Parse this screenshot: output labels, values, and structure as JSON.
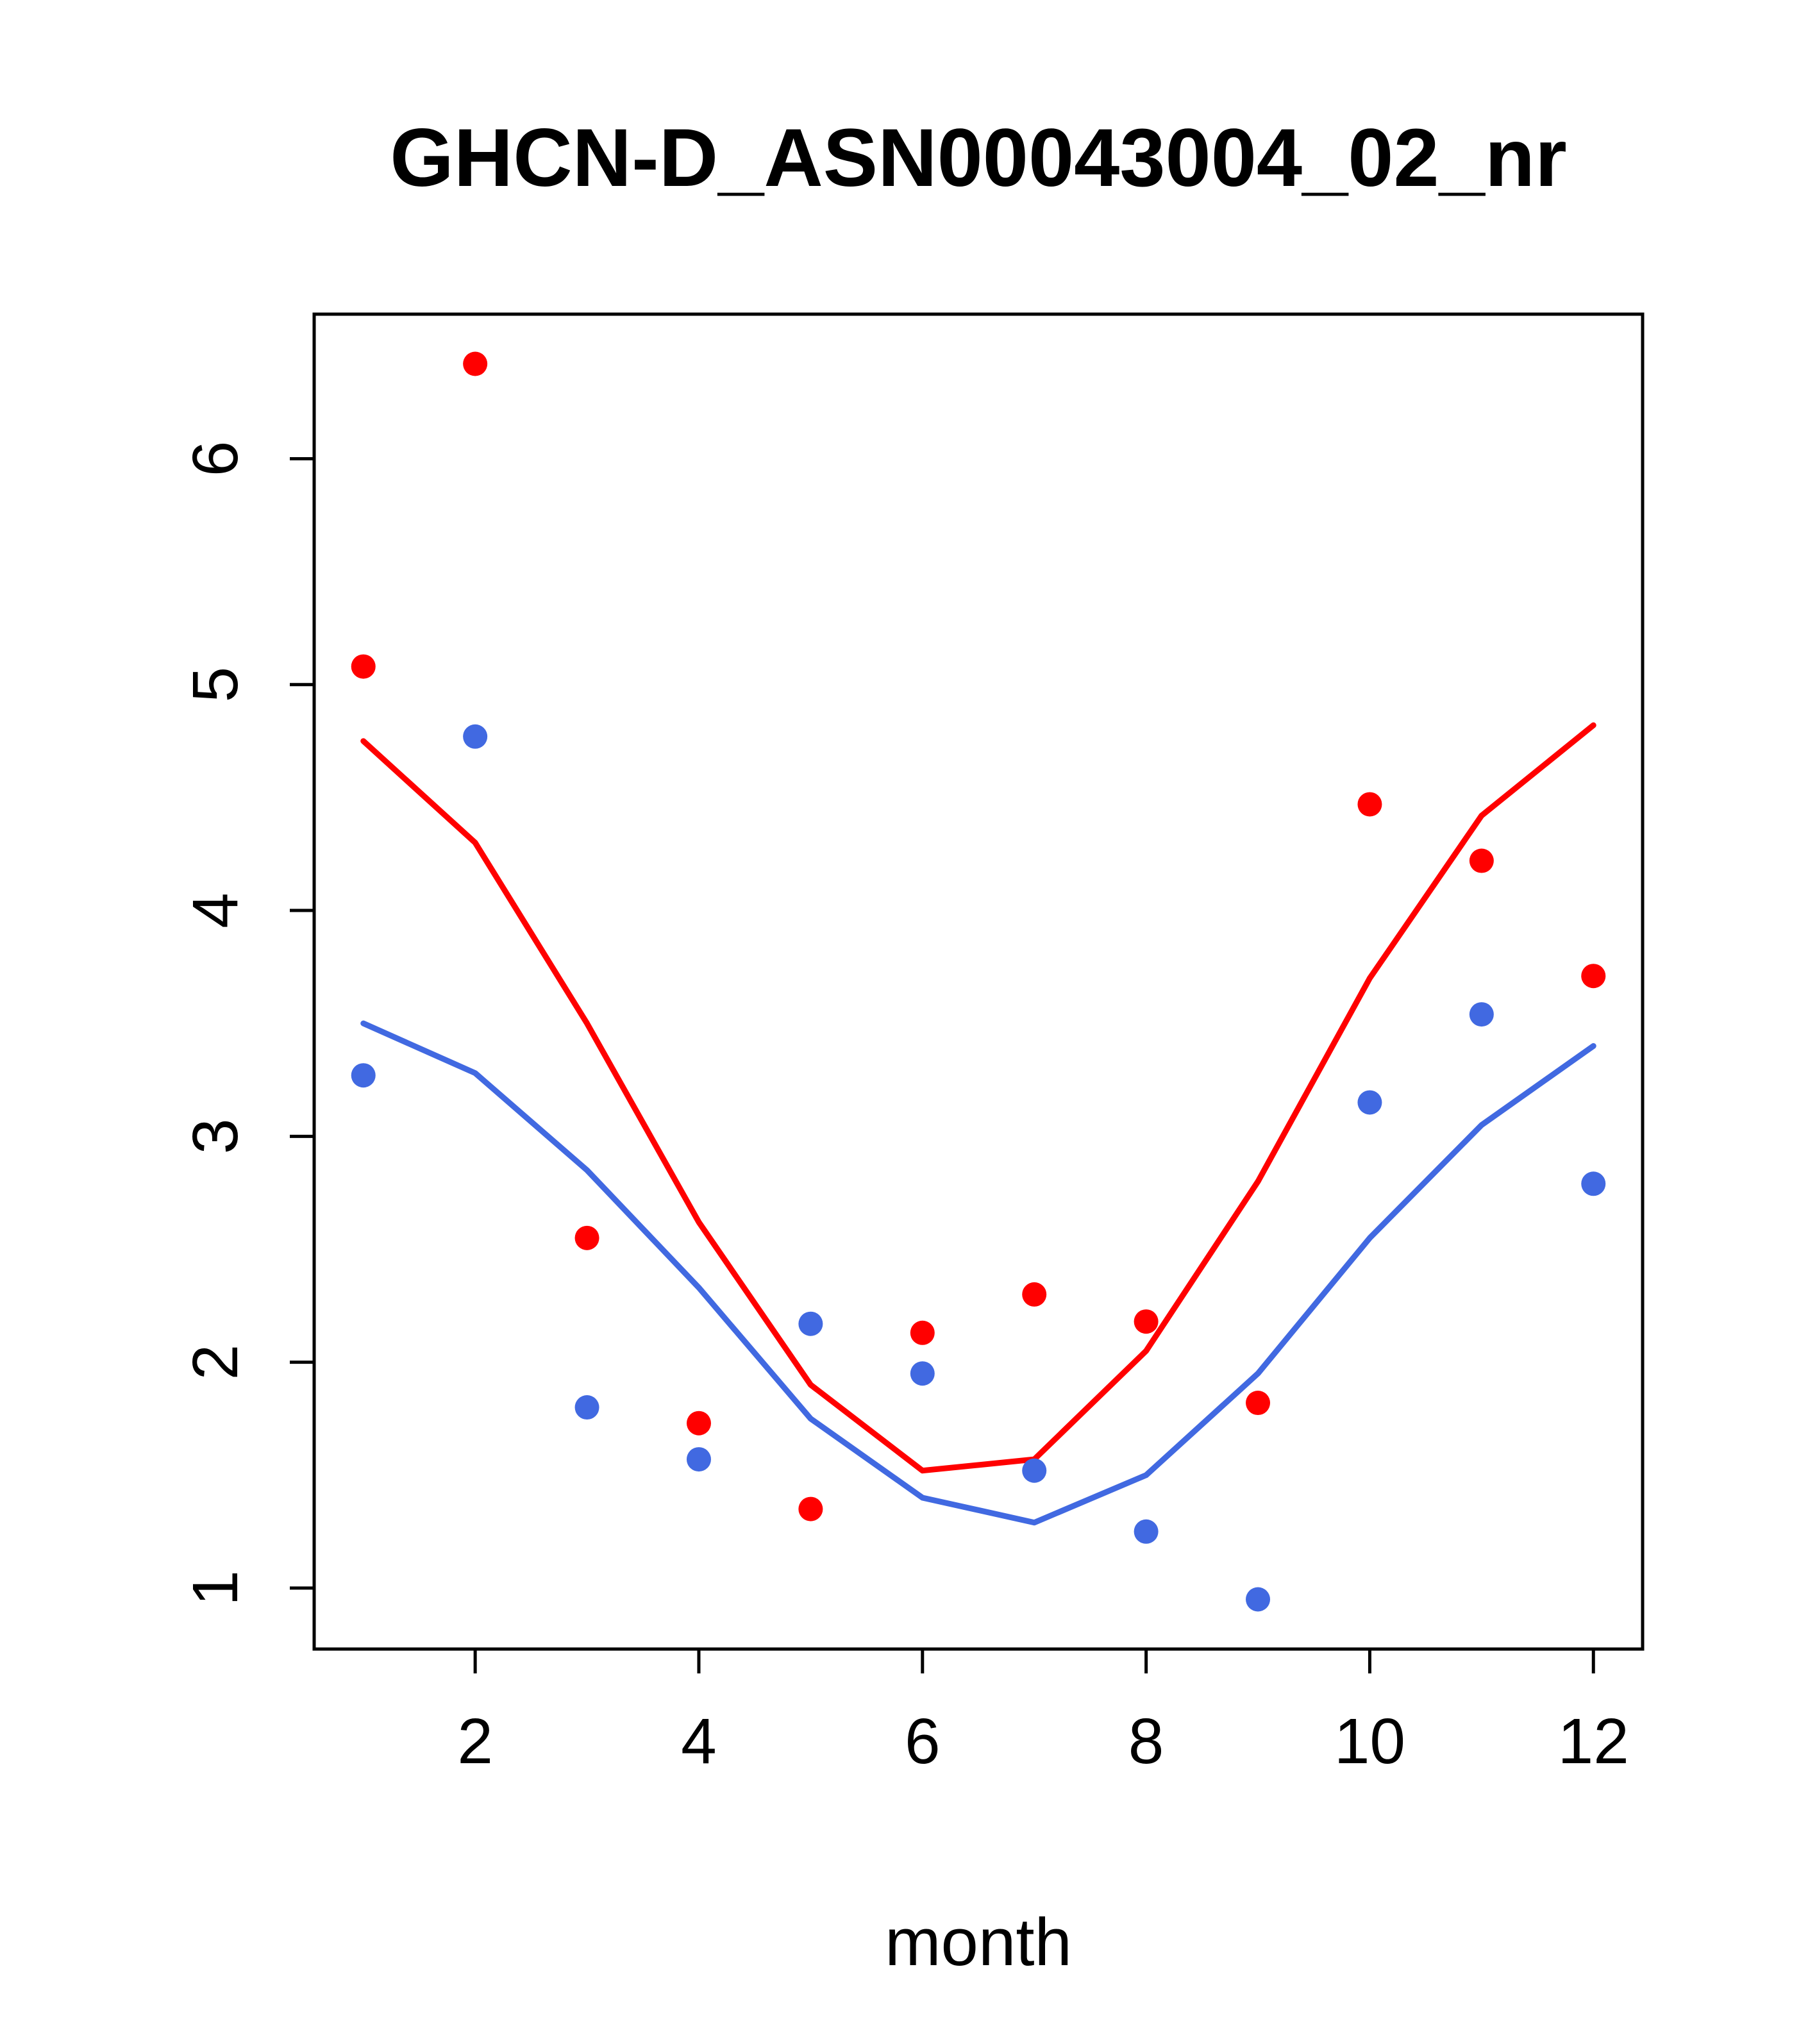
{
  "title": "GHCN-D_ASN00043004_02_nr",
  "chart_data": {
    "type": "scatter",
    "title": "GHCN-D_ASN00043004_02_nr",
    "xlabel": "month",
    "ylabel": "",
    "grid": false,
    "legend": "none",
    "x": [
      1,
      2,
      3,
      4,
      5,
      6,
      7,
      8,
      9,
      10,
      11,
      12
    ],
    "xlim": [
      0.56,
      12.44
    ],
    "ylim": [
      0.73,
      6.64
    ],
    "x_ticks": [
      2,
      4,
      6,
      8,
      10,
      12
    ],
    "y_ticks": [
      1,
      2,
      3,
      4,
      5,
      6
    ],
    "colors": {
      "red": "#FF0000",
      "blue": "#4169E1"
    },
    "series": [
      {
        "name": "red-line",
        "kind": "line",
        "color": "#FF0000",
        "values": [
          4.75,
          4.3,
          3.5,
          2.62,
          1.9,
          1.52,
          1.57,
          2.05,
          2.8,
          3.7,
          4.42,
          4.82
        ]
      },
      {
        "name": "blue-line",
        "kind": "line",
        "color": "#4169E1",
        "values": [
          3.5,
          3.28,
          2.85,
          2.33,
          1.75,
          1.4,
          1.29,
          1.5,
          1.95,
          2.55,
          3.05,
          3.4
        ]
      },
      {
        "name": "red-points",
        "kind": "points",
        "color": "#FF0000",
        "values": [
          5.08,
          6.42,
          2.55,
          1.73,
          1.35,
          2.13,
          2.3,
          2.18,
          1.82,
          4.47,
          4.22,
          3.71
        ]
      },
      {
        "name": "blue-points",
        "kind": "points",
        "color": "#4169E1",
        "values": [
          3.27,
          4.77,
          1.8,
          1.57,
          2.17,
          1.95,
          1.52,
          1.25,
          0.95,
          3.15,
          3.54,
          2.79
        ]
      }
    ]
  }
}
